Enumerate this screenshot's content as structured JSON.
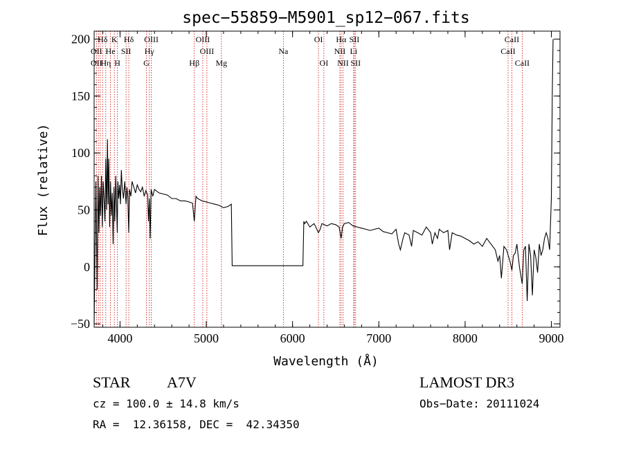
{
  "chart_data": {
    "type": "line",
    "title": "spec−55859−M5901_sp12−067.fits",
    "xlabel": "Wavelength (Å)",
    "ylabel": "Flux (relative)",
    "xlim": [
      3700,
      9100
    ],
    "ylim": [
      -53,
      207
    ],
    "x_ticks": [
      {
        "value": 4000,
        "label": "4000"
      },
      {
        "value": 5000,
        "label": "5000"
      },
      {
        "value": 6000,
        "label": "6000"
      },
      {
        "value": 7000,
        "label": "7000"
      },
      {
        "value": 8000,
        "label": "8000"
      },
      {
        "value": 9000,
        "label": "9000"
      }
    ],
    "y_ticks": [
      {
        "value": -50,
        "label": "−50"
      },
      {
        "value": 0,
        "label": "0"
      },
      {
        "value": 50,
        "label": "50"
      },
      {
        "value": 100,
        "label": "100"
      },
      {
        "value": 150,
        "label": "150"
      },
      {
        "value": 200,
        "label": "200"
      }
    ],
    "series": [
      {
        "name": "spectrum",
        "x": [
          3700,
          3720,
          3735,
          3745,
          3755,
          3765,
          3775,
          3785,
          3795,
          3805,
          3815,
          3825,
          3835,
          3845,
          3855,
          3862,
          3870,
          3880,
          3890,
          3900,
          3910,
          3920,
          3930,
          3940,
          3950,
          3960,
          3968,
          3975,
          3985,
          3995,
          4005,
          4015,
          4025,
          4040,
          4055,
          4070,
          4080,
          4090,
          4101,
          4110,
          4125,
          4140,
          4160,
          4180,
          4200,
          4220,
          4240,
          4260,
          4280,
          4300,
          4320,
          4330,
          4340,
          4350,
          4360,
          4380,
          4400,
          4450,
          4500,
          4550,
          4600,
          4650,
          4700,
          4750,
          4800,
          4840,
          4861,
          4880,
          4900,
          4950,
          5000,
          5050,
          5100,
          5150,
          5200,
          5250,
          5290,
          5300,
          5400,
          5600,
          5800,
          6000,
          6100,
          6120,
          6130,
          6140,
          6160,
          6200,
          6250,
          6300,
          6320,
          6340,
          6400,
          6450,
          6500,
          6540,
          6563,
          6580,
          6600,
          6650,
          6700,
          6750,
          6800,
          6850,
          6900,
          6950,
          7000,
          7050,
          7100,
          7150,
          7200,
          7230,
          7250,
          7280,
          7300,
          7350,
          7380,
          7400,
          7450,
          7500,
          7550,
          7600,
          7620,
          7650,
          7680,
          7700,
          7750,
          7800,
          7820,
          7850,
          7900,
          7950,
          8000,
          8050,
          8100,
          8150,
          8200,
          8250,
          8300,
          8350,
          8380,
          8400,
          8420,
          8450,
          8480,
          8500,
          8520,
          8542,
          8560,
          8580,
          8600,
          8630,
          8662,
          8680,
          8700,
          8720,
          8740,
          8760,
          8780,
          8800,
          8820,
          8840,
          8860,
          8880,
          8900,
          8920,
          8940,
          8960,
          8980,
          9000,
          9010,
          9020
        ],
        "values": [
          -50,
          75,
          -20,
          80,
          30,
          70,
          45,
          80,
          35,
          75,
          60,
          40,
          95,
          50,
          112,
          55,
          95,
          35,
          75,
          45,
          65,
          20,
          70,
          40,
          80,
          55,
          30,
          75,
          60,
          72,
          55,
          85,
          70,
          60,
          75,
          55,
          70,
          62,
          30,
          68,
          62,
          75,
          70,
          65,
          72,
          68,
          66,
          70,
          62,
          67,
          63,
          40,
          60,
          25,
          68,
          62,
          68,
          65,
          64,
          63,
          60,
          60,
          58,
          58,
          57,
          56,
          40,
          62,
          60,
          58,
          57,
          56,
          55,
          54,
          52,
          53,
          55,
          1,
          1,
          1,
          1,
          1,
          1,
          1,
          40,
          38,
          40,
          35,
          38,
          30,
          33,
          38,
          36,
          38,
          37,
          35,
          25,
          35,
          38,
          39,
          36,
          35,
          34,
          33,
          32,
          33,
          34,
          31,
          30,
          29,
          33,
          20,
          15,
          25,
          30,
          28,
          18,
          32,
          30,
          28,
          35,
          30,
          20,
          30,
          25,
          33,
          30,
          32,
          15,
          30,
          28,
          27,
          25,
          23,
          20,
          22,
          18,
          25,
          20,
          15,
          5,
          10,
          -10,
          18,
          15,
          10,
          5,
          -3,
          10,
          12,
          20,
          0,
          -15,
          15,
          18,
          -30,
          20,
          10,
          -25,
          15,
          8,
          -5,
          20,
          10,
          15,
          25,
          30,
          25,
          15,
          60,
          150,
          200
        ]
      }
    ],
    "line_ids": [
      {
        "label": "Hδ",
        "wave": 3798,
        "row": 1
      },
      {
        "label": "K",
        "wave": 3934,
        "row": 1
      },
      {
        "label": "Hδ",
        "wave": 4102,
        "row": 1
      },
      {
        "label": "OIII",
        "wave": 4363,
        "row": 1
      },
      {
        "label": "OIII",
        "wave": 4959,
        "row": 1
      },
      {
        "label": "OI",
        "wave": 6300,
        "row": 1
      },
      {
        "label": "Hα",
        "wave": 6563,
        "row": 1
      },
      {
        "label": "SII",
        "wave": 6716,
        "row": 1
      },
      {
        "label": "CaII",
        "wave": 8542,
        "row": 1
      },
      {
        "label": "OII",
        "wave": 3727,
        "row": 2
      },
      {
        "label": "He",
        "wave": 3889,
        "row": 2
      },
      {
        "label": "SII",
        "wave": 4070,
        "row": 2
      },
      {
        "label": "Hγ",
        "wave": 4340,
        "row": 2
      },
      {
        "label": "OIII",
        "wave": 5007,
        "row": 2
      },
      {
        "label": "Na",
        "wave": 5893,
        "row": 2
      },
      {
        "label": "NII",
        "wave": 6548,
        "row": 2
      },
      {
        "label": "Li",
        "wave": 6708,
        "row": 2
      },
      {
        "label": "CaII",
        "wave": 8498,
        "row": 2
      },
      {
        "label": "OII",
        "wave": 3727,
        "row": 3
      },
      {
        "label": "Hη",
        "wave": 3835,
        "row": 3
      },
      {
        "label": "H",
        "wave": 3969,
        "row": 3
      },
      {
        "label": "G",
        "wave": 4305,
        "row": 3
      },
      {
        "label": "Hβ",
        "wave": 4861,
        "row": 3
      },
      {
        "label": "Mg",
        "wave": 5175,
        "row": 3
      },
      {
        "label": "OI",
        "wave": 6363,
        "row": 3
      },
      {
        "label": "NII",
        "wave": 6584,
        "row": 3
      },
      {
        "label": "SII",
        "wave": 6731,
        "row": 3
      },
      {
        "label": "CaII",
        "wave": 8662,
        "row": 3
      }
    ],
    "line_marker_waves": [
      3727,
      3750,
      3771,
      3798,
      3835,
      3889,
      3934,
      3969,
      4070,
      4102,
      4305,
      4340,
      4363,
      4861,
      4959,
      5007,
      5175,
      5893,
      6300,
      6363,
      6548,
      6563,
      6584,
      6708,
      6716,
      6731,
      8498,
      8542,
      8662
    ]
  },
  "info": {
    "object_class": "STAR",
    "subclass": "A7V",
    "survey": "LAMOST DR3",
    "cz": "cz = 100.0 ± 14.8 km/s",
    "obs_date": "Obs−Date: 20111024",
    "coords": "RA =  12.36158, DEC =  42.34350"
  },
  "colors": {
    "marker_line": "#cc0000",
    "spectrum": "#000000",
    "axes": "#000000"
  }
}
